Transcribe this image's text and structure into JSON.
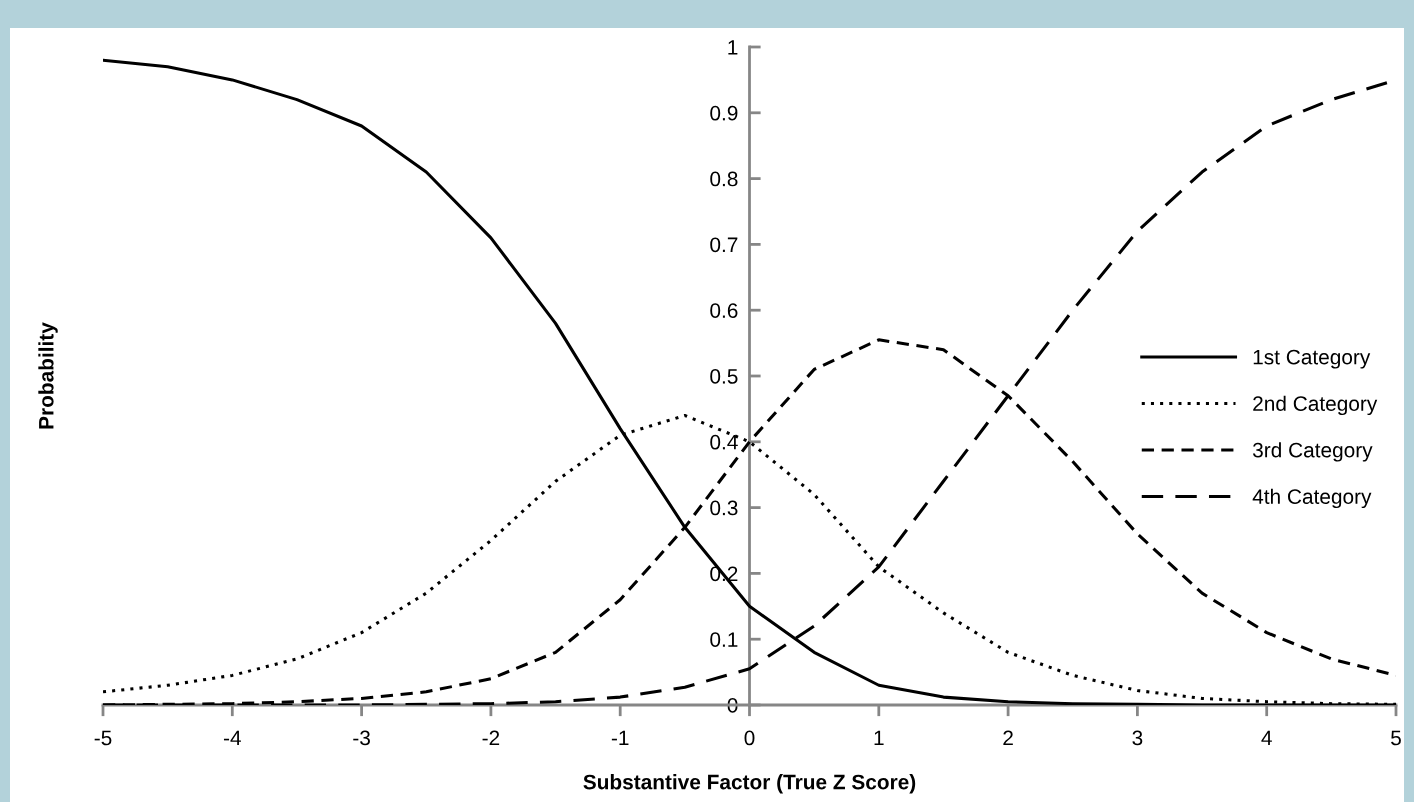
{
  "chart_data": {
    "type": "line",
    "xlabel": "Substantive Factor (True Z Score)",
    "ylabel": "Probability",
    "x": [
      -5,
      -4.5,
      -4,
      -3.5,
      -3,
      -2.5,
      -2,
      -1.5,
      -1,
      -0.5,
      0,
      0.5,
      1,
      1.5,
      2,
      2.5,
      3,
      3.5,
      4,
      4.5,
      5
    ],
    "series": [
      {
        "name": "1st Category",
        "color": "#000000",
        "line_style": "solid",
        "values": [
          0.98,
          0.97,
          0.95,
          0.92,
          0.88,
          0.81,
          0.71,
          0.58,
          0.42,
          0.27,
          0.15,
          0.08,
          0.03,
          0.012,
          0.005,
          0.002,
          0.001,
          0,
          0,
          0,
          0
        ]
      },
      {
        "name": "2nd Category",
        "color": "#000000",
        "line_style": "dotted",
        "values": [
          0.02,
          0.03,
          0.045,
          0.07,
          0.11,
          0.17,
          0.25,
          0.34,
          0.41,
          0.44,
          0.4,
          0.32,
          0.21,
          0.14,
          0.08,
          0.045,
          0.022,
          0.01,
          0.005,
          0.002,
          0.001
        ]
      },
      {
        "name": "3rd Category",
        "color": "#000000",
        "line_style": "dashed",
        "values": [
          0,
          0.001,
          0.002,
          0.005,
          0.01,
          0.02,
          0.04,
          0.08,
          0.16,
          0.27,
          0.4,
          0.51,
          0.555,
          0.54,
          0.47,
          0.37,
          0.26,
          0.17,
          0.11,
          0.07,
          0.045
        ]
      },
      {
        "name": "4th Category",
        "color": "#000000",
        "line_style": "longdash",
        "values": [
          0,
          0,
          0,
          0,
          0,
          0.001,
          0.002,
          0.005,
          0.012,
          0.027,
          0.055,
          0.12,
          0.21,
          0.34,
          0.47,
          0.6,
          0.72,
          0.81,
          0.88,
          0.92,
          0.95
        ]
      }
    ],
    "xlim": [
      -5,
      5
    ],
    "xticks": [
      -5,
      -4,
      -3,
      -2,
      -1,
      0,
      1,
      2,
      3,
      4,
      5
    ],
    "ylim": [
      0,
      1
    ],
    "yticks": [
      0,
      0.1,
      0.2,
      0.3,
      0.4,
      0.5,
      0.6,
      0.7,
      0.8,
      0.9,
      1
    ],
    "grid": false,
    "legend": "right",
    "marker": "none"
  }
}
